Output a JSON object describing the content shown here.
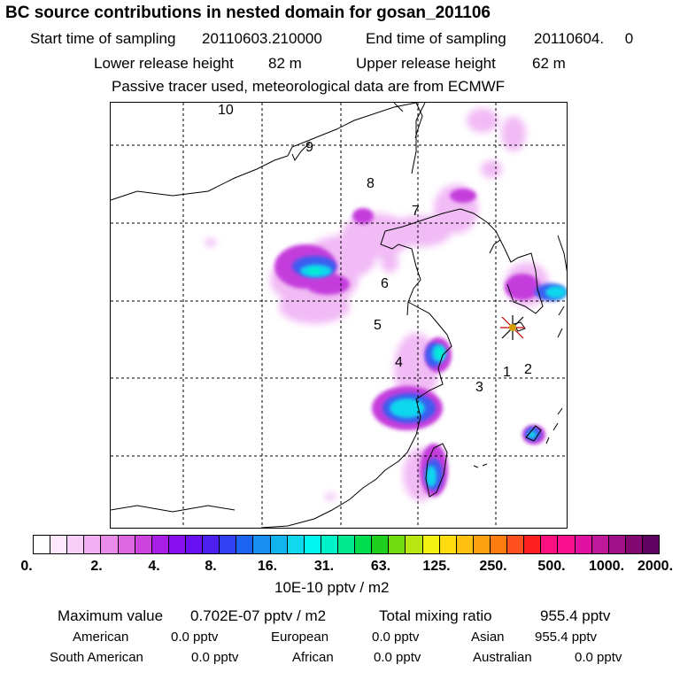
{
  "header": {
    "title": "BC  source contributions in nested domain for gosan_201106",
    "start_label": "Start time of sampling",
    "start_value": "20110603.210000",
    "end_label": "End time of sampling",
    "end_value": "20110604.     0",
    "lower_label": "Lower release height",
    "lower_value": "82 m",
    "upper_label": "Upper release height",
    "upper_value": "62 m",
    "note": "Passive tracer used, meteorological data are from ECMWF"
  },
  "map": {
    "region_labels": [
      "1",
      "2",
      "3",
      "4",
      "5",
      "6",
      "7",
      "8",
      "9",
      "10"
    ],
    "marker": "gosan-receptor-star"
  },
  "colorbar": {
    "tick_labels": [
      "0.",
      "2.",
      "4.",
      "8.",
      "16.",
      "31.",
      "63.",
      "125.",
      "250.",
      "500.",
      "1000.",
      "2000."
    ],
    "colors": [
      "#ffffff",
      "#fde8fd",
      "#f8cff8",
      "#f2b0f2",
      "#e98be9",
      "#dd66e2",
      "#cc44dd",
      "#a81ee4",
      "#8a0ff0",
      "#6a10f0",
      "#4d20f0",
      "#3040f2",
      "#1d63f2",
      "#1890f2",
      "#10b5f0",
      "#10d8ee",
      "#00f5f0",
      "#00f2c8",
      "#00e890",
      "#00de50",
      "#1ecf1e",
      "#6fdc10",
      "#b8e610",
      "#f2f010",
      "#ffdc10",
      "#ffc010",
      "#ffa010",
      "#ff7d10",
      "#ff5020",
      "#ff2020",
      "#ff1080",
      "#f81090",
      "#e010a0",
      "#c0189a",
      "#a01088",
      "#800870",
      "#600060"
    ],
    "units": "10E-10 pptv / m2"
  },
  "summary": {
    "max_label": "Maximum value",
    "max_value": "0.702E-07 pptv / m2",
    "total_label": "Total mixing ratio",
    "total_value": "955.4 pptv",
    "regions": [
      {
        "name": "American",
        "value": "0.0 pptv"
      },
      {
        "name": "European",
        "value": "0.0 pptv"
      },
      {
        "name": "Asian",
        "value": "955.4 pptv"
      },
      {
        "name": "South American",
        "value": "0.0 pptv"
      },
      {
        "name": "African",
        "value": "0.0 pptv"
      },
      {
        "name": "Australian",
        "value": "0.0 pptv"
      }
    ]
  }
}
